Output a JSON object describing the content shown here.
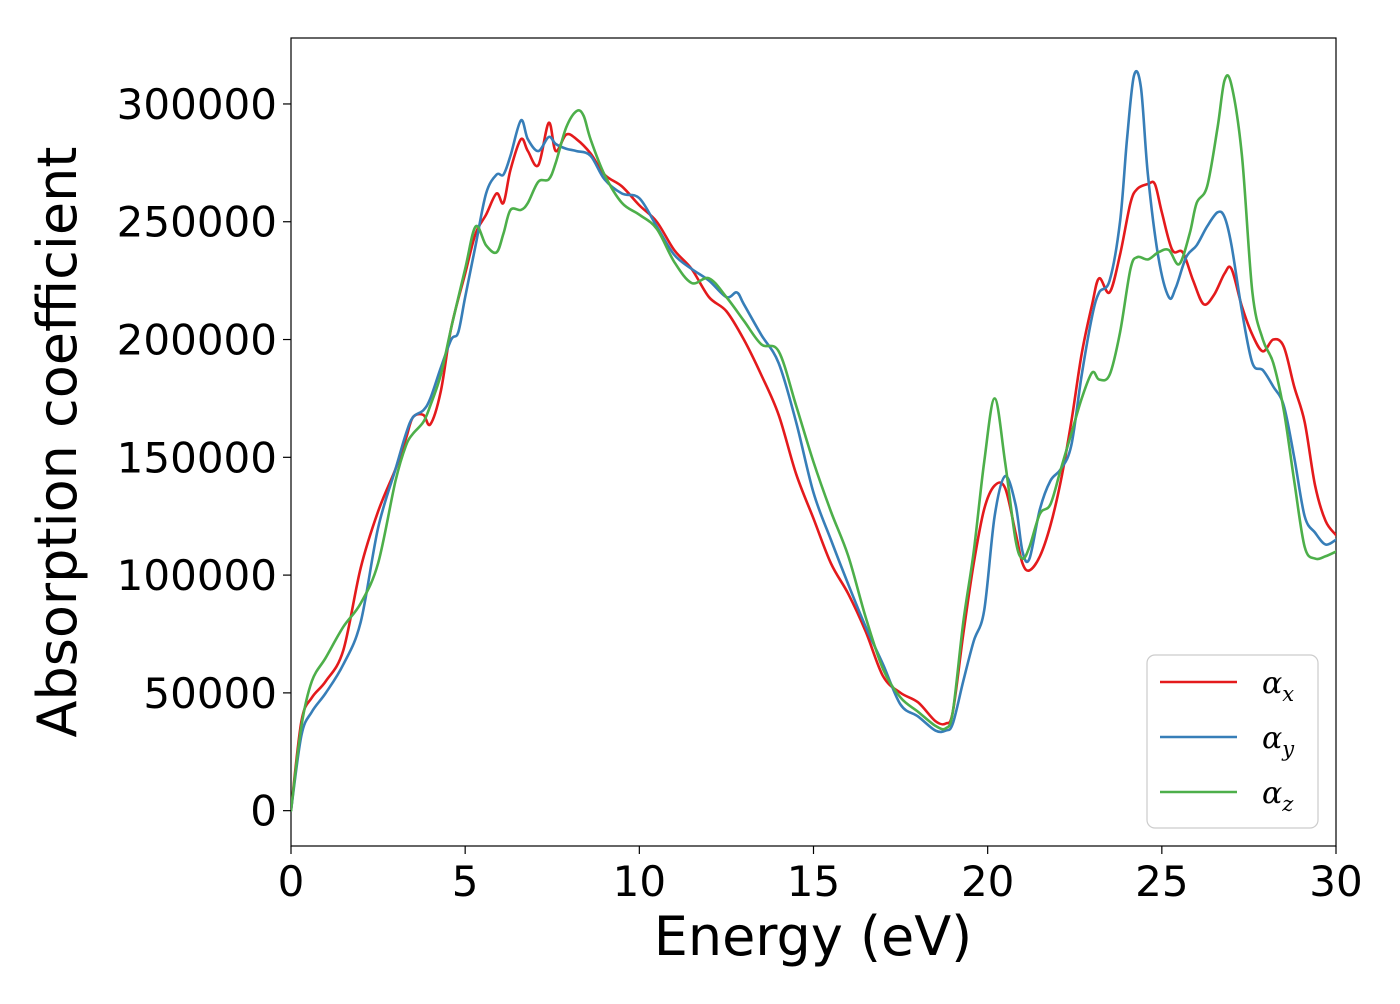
{
  "chart_data": {
    "type": "line",
    "title": "",
    "xlabel": "Energy (eV)",
    "ylabel": "Absorption coefficient",
    "xlim": [
      0,
      30
    ],
    "ylim": [
      -15000,
      328000
    ],
    "xticks": [
      0,
      5,
      10,
      15,
      20,
      25,
      30
    ],
    "xtick_labels": [
      "0",
      "5",
      "10",
      "15",
      "20",
      "25",
      "30"
    ],
    "yticks": [
      0,
      50000,
      100000,
      150000,
      200000,
      250000,
      300000
    ],
    "ytick_labels": [
      "0",
      "50000",
      "100000",
      "150000",
      "200000",
      "250000",
      "300000"
    ],
    "grid": false,
    "legend_position": "lower right",
    "series": [
      {
        "name": "α_x",
        "name_base": "α",
        "name_sub": "x",
        "color": "#e41a1c",
        "x": [
          0,
          0.3,
          0.6,
          1.0,
          1.5,
          2.0,
          2.5,
          3.0,
          3.3,
          3.5,
          3.8,
          4.0,
          4.3,
          4.6,
          5.0,
          5.3,
          5.6,
          5.9,
          6.1,
          6.3,
          6.6,
          6.8,
          7.1,
          7.4,
          7.6,
          7.9,
          8.2,
          8.6,
          9.0,
          9.5,
          10.0,
          10.5,
          11.0,
          11.5,
          12.0,
          12.5,
          13.0,
          13.5,
          14.0,
          14.5,
          15.0,
          15.5,
          16.0,
          16.5,
          17.0,
          17.5,
          18.0,
          18.5,
          18.8,
          19.0,
          19.3,
          19.6,
          19.9,
          20.2,
          20.5,
          20.8,
          21.0,
          21.2,
          21.5,
          21.8,
          22.1,
          22.4,
          22.7,
          23.0,
          23.2,
          23.5,
          23.8,
          24.1,
          24.3,
          24.6,
          24.8,
          25.0,
          25.3,
          25.6,
          25.9,
          26.2,
          26.5,
          26.8,
          27.0,
          27.3,
          27.6,
          27.9,
          28.2,
          28.5,
          28.8,
          29.1,
          29.4,
          29.7,
          30.0
        ],
        "y": [
          0,
          38000,
          48000,
          55000,
          68000,
          103000,
          127000,
          145000,
          158000,
          167000,
          168000,
          164000,
          178000,
          205000,
          228000,
          245000,
          253000,
          262000,
          258000,
          272000,
          285000,
          280000,
          274000,
          292000,
          280000,
          287000,
          285000,
          279000,
          270000,
          265000,
          257000,
          250000,
          238000,
          230000,
          218000,
          212000,
          200000,
          185000,
          168000,
          143000,
          124000,
          105000,
          92000,
          76000,
          57000,
          50000,
          46000,
          38000,
          37000,
          42000,
          75000,
          105000,
          128000,
          138000,
          137000,
          118000,
          105000,
          102000,
          108000,
          121000,
          140000,
          165000,
          194000,
          215000,
          226000,
          220000,
          236000,
          258000,
          264000,
          266000,
          266000,
          254000,
          238000,
          237000,
          225000,
          215000,
          219000,
          228000,
          230000,
          214000,
          202000,
          195000,
          200000,
          197000,
          180000,
          165000,
          138000,
          123000,
          117000
        ]
      },
      {
        "name": "α_y",
        "name_base": "α",
        "name_sub": "y",
        "color": "#377eb8",
        "x": [
          0,
          0.3,
          0.6,
          1.0,
          1.5,
          2.0,
          2.5,
          3.0,
          3.3,
          3.5,
          3.8,
          4.0,
          4.3,
          4.6,
          4.8,
          5.0,
          5.3,
          5.6,
          5.9,
          6.1,
          6.3,
          6.6,
          6.8,
          7.1,
          7.4,
          7.6,
          7.9,
          8.2,
          8.6,
          9.0,
          9.5,
          10.0,
          10.5,
          11.0,
          11.5,
          12.0,
          12.5,
          12.8,
          13.0,
          13.5,
          14.0,
          14.5,
          15.0,
          15.5,
          16.0,
          16.5,
          17.0,
          17.5,
          18.0,
          18.5,
          18.8,
          19.0,
          19.3,
          19.6,
          19.9,
          20.2,
          20.5,
          20.8,
          21.0,
          21.2,
          21.5,
          21.8,
          22.1,
          22.4,
          22.7,
          23.0,
          23.2,
          23.5,
          23.8,
          24.0,
          24.2,
          24.4,
          24.6,
          24.9,
          25.2,
          25.4,
          25.7,
          26.0,
          26.3,
          26.6,
          26.8,
          27.0,
          27.3,
          27.6,
          27.9,
          28.2,
          28.5,
          28.8,
          29.1,
          29.4,
          29.7,
          30.0
        ],
        "y": [
          0,
          32000,
          42000,
          50000,
          62000,
          80000,
          120000,
          145000,
          160000,
          167000,
          170000,
          175000,
          188000,
          200000,
          203000,
          218000,
          240000,
          262000,
          270000,
          270000,
          278000,
          293000,
          285000,
          280000,
          286000,
          283000,
          281000,
          280000,
          278000,
          268000,
          262000,
          260000,
          248000,
          236000,
          230000,
          225000,
          218000,
          220000,
          215000,
          202000,
          190000,
          165000,
          135000,
          115000,
          96000,
          78000,
          62000,
          45000,
          40000,
          34000,
          34000,
          37000,
          55000,
          72000,
          85000,
          125000,
          142000,
          130000,
          110000,
          107000,
          128000,
          140000,
          145000,
          155000,
          185000,
          210000,
          220000,
          225000,
          250000,
          285000,
          312000,
          307000,
          270000,
          235000,
          218000,
          222000,
          235000,
          240000,
          248000,
          254000,
          252000,
          240000,
          212000,
          190000,
          187000,
          180000,
          172000,
          150000,
          125000,
          118000,
          113000,
          115000
        ]
      },
      {
        "name": "α_z",
        "name_base": "α",
        "name_sub": "z",
        "color": "#4daf4a",
        "x": [
          0,
          0.3,
          0.6,
          1.0,
          1.5,
          2.0,
          2.5,
          3.0,
          3.3,
          3.5,
          3.8,
          4.0,
          4.3,
          4.6,
          5.0,
          5.3,
          5.6,
          5.9,
          6.1,
          6.3,
          6.6,
          6.8,
          7.1,
          7.4,
          7.6,
          7.9,
          8.2,
          8.4,
          8.6,
          9.0,
          9.5,
          10.0,
          10.5,
          11.0,
          11.5,
          12.0,
          12.5,
          13.0,
          13.5,
          14.0,
          14.5,
          15.0,
          15.5,
          16.0,
          16.5,
          17.0,
          17.5,
          18.0,
          18.5,
          18.8,
          19.0,
          19.3,
          19.6,
          19.9,
          20.2,
          20.5,
          20.8,
          21.0,
          21.2,
          21.5,
          21.8,
          22.1,
          22.4,
          22.7,
          23.0,
          23.2,
          23.5,
          23.8,
          24.1,
          24.3,
          24.6,
          24.9,
          25.2,
          25.5,
          25.8,
          26.0,
          26.3,
          26.6,
          26.8,
          27.0,
          27.3,
          27.6,
          27.9,
          28.2,
          28.5,
          28.8,
          29.1,
          29.4,
          29.7,
          30.0
        ],
        "y": [
          0,
          36000,
          55000,
          65000,
          78000,
          88000,
          105000,
          140000,
          155000,
          160000,
          165000,
          172000,
          185000,
          205000,
          230000,
          248000,
          240000,
          237000,
          245000,
          255000,
          255000,
          258000,
          267000,
          268000,
          275000,
          290000,
          297000,
          295000,
          285000,
          270000,
          258000,
          253000,
          247000,
          233000,
          224000,
          226000,
          218000,
          208000,
          198000,
          195000,
          172000,
          148000,
          127000,
          108000,
          82000,
          60000,
          48000,
          42000,
          36000,
          35000,
          42000,
          80000,
          110000,
          148000,
          175000,
          148000,
          115000,
          107000,
          112000,
          126000,
          130000,
          145000,
          160000,
          175000,
          186000,
          183000,
          185000,
          203000,
          230000,
          235000,
          234000,
          237000,
          238000,
          232000,
          245000,
          258000,
          265000,
          290000,
          310000,
          308000,
          278000,
          220000,
          200000,
          190000,
          170000,
          140000,
          112000,
          107000,
          108000,
          110000
        ]
      }
    ]
  }
}
